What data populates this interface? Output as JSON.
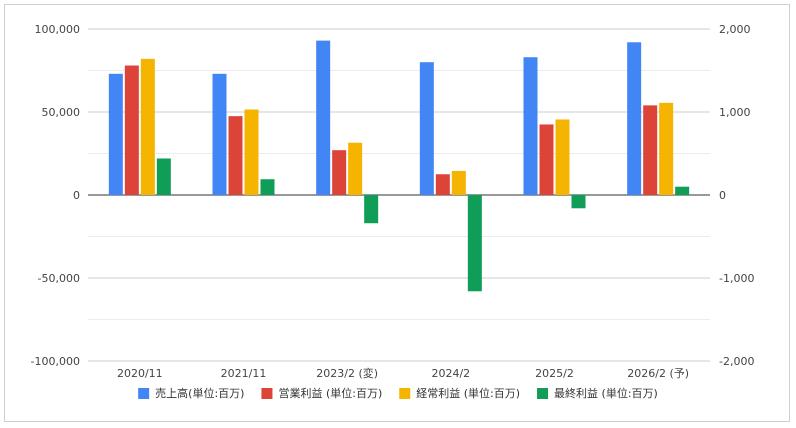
{
  "chart_data": {
    "type": "bar",
    "categories": [
      "2020/11",
      "2021/11",
      "2023/2 (変)",
      "2024/2",
      "2025/2",
      "2026/2 (予)"
    ],
    "series": [
      {
        "name": "売上高(単位:百万)",
        "color": "#4285f4",
        "axis": "left",
        "values": [
          73000,
          73000,
          93000,
          80000,
          83000,
          92000
        ]
      },
      {
        "name": "営業利益 (単位:百万)",
        "color": "#db4437",
        "axis": "right",
        "values": [
          1560,
          950,
          540,
          250,
          850,
          1080
        ]
      },
      {
        "name": "経常利益 (単位:百万)",
        "color": "#f4b400",
        "axis": "right",
        "values": [
          1640,
          1030,
          630,
          290,
          910,
          1110
        ]
      },
      {
        "name": "最終利益 (単位:百万)",
        "color": "#0f9d58",
        "axis": "right",
        "values": [
          440,
          190,
          -340,
          -1160,
          -160,
          100
        ]
      }
    ],
    "y_left": {
      "ylim": [
        -100000,
        100000
      ],
      "ticks": [
        100000,
        50000,
        0,
        -50000,
        -100000
      ],
      "tick_labels": [
        "100,000",
        "50,000",
        "0",
        "-50,000",
        "-100,000"
      ]
    },
    "y_right": {
      "ylim": [
        -2000,
        2000
      ],
      "ticks": [
        2000,
        1000,
        0,
        -1000,
        -2000
      ],
      "tick_labels": [
        "2,000",
        "1,000",
        "0",
        "-1,000",
        "-2,000"
      ]
    },
    "grid": true,
    "legend_position": "bottom"
  }
}
